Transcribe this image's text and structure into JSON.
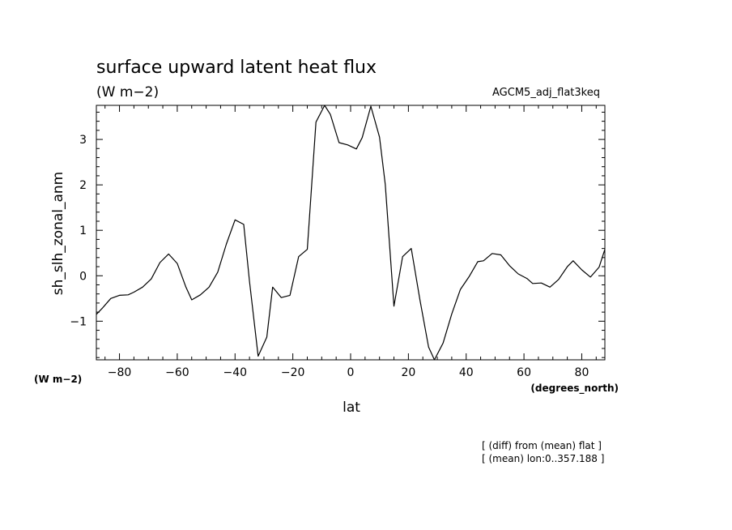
{
  "chart_data": {
    "type": "line",
    "title": "surface upward latent heat flux",
    "subtitle": "(W m−2)",
    "run_label": "AGCM5_adj_flat3keq",
    "ylabel": "sh_slh_zonal_anm",
    "xlabel": "lat",
    "y_unit": "(W m−2)",
    "x_unit": "(degrees_north)",
    "notes": [
      "[ (diff) from (mean) flat ]",
      "[ (mean) lon:0..357.188 ]"
    ],
    "xlim": [
      -88,
      88
    ],
    "ylim": [
      -1.85,
      3.75
    ],
    "x_ticks": [
      -80,
      -60,
      -40,
      -20,
      0,
      20,
      40,
      60,
      80
    ],
    "x_tick_labels": [
      "−80",
      "−60",
      "−40",
      "−20",
      "0",
      "20",
      "40",
      "60",
      "80"
    ],
    "y_ticks": [
      -1,
      0,
      1,
      2,
      3
    ],
    "y_tick_labels": [
      "−1",
      "0",
      "1",
      "2",
      "3"
    ],
    "x_minor_step": 5,
    "y_minor_step": 0.2,
    "series": [
      {
        "x": [
          -88,
          -86,
          -83,
          -80,
          -77,
          -75,
          -72,
          -69,
          -66,
          -63,
          -60,
          -57,
          -55,
          -52,
          -49,
          -46,
          -43,
          -40,
          -37,
          -35,
          -32,
          -29,
          -27,
          -24,
          -21,
          -18,
          -15,
          -12,
          -9,
          -7,
          -4,
          -1,
          2,
          4,
          7,
          10,
          12,
          15,
          18,
          21,
          24,
          27,
          29,
          32,
          35,
          38,
          41,
          44,
          46,
          49,
          52,
          55,
          58,
          61,
          63,
          66,
          69,
          72,
          75,
          77,
          80,
          83,
          86,
          88
        ],
        "y": [
          -0.85,
          -0.72,
          -0.5,
          -0.43,
          -0.42,
          -0.36,
          -0.25,
          -0.07,
          0.29,
          0.48,
          0.27,
          -0.25,
          -0.53,
          -0.42,
          -0.25,
          0.08,
          0.7,
          1.23,
          1.13,
          -0.12,
          -1.77,
          -1.35,
          -0.25,
          -0.48,
          -0.43,
          0.42,
          0.58,
          3.38,
          3.75,
          3.55,
          2.93,
          2.88,
          2.79,
          3.04,
          3.73,
          3.05,
          2.01,
          -0.67,
          0.42,
          0.6,
          -0.53,
          -1.57,
          -1.85,
          -1.48,
          -0.84,
          -0.3,
          -0.02,
          0.31,
          0.33,
          0.49,
          0.46,
          0.22,
          0.04,
          -0.06,
          -0.17,
          -0.16,
          -0.25,
          -0.08,
          0.2,
          0.33,
          0.13,
          -0.03,
          0.19,
          0.58
        ]
      }
    ]
  }
}
